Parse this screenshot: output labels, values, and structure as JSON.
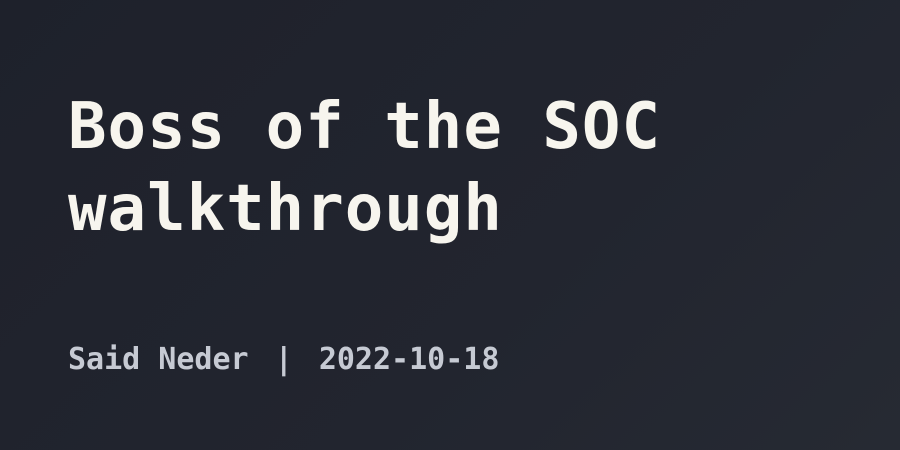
{
  "post": {
    "title": "Boss of the SOC walkthrough",
    "author": "Said Neder",
    "separator": "|",
    "date": "2022-10-18"
  },
  "colors": {
    "background": "#22252f",
    "title_text": "#f7f5ee",
    "meta_text": "#c6cad3"
  }
}
